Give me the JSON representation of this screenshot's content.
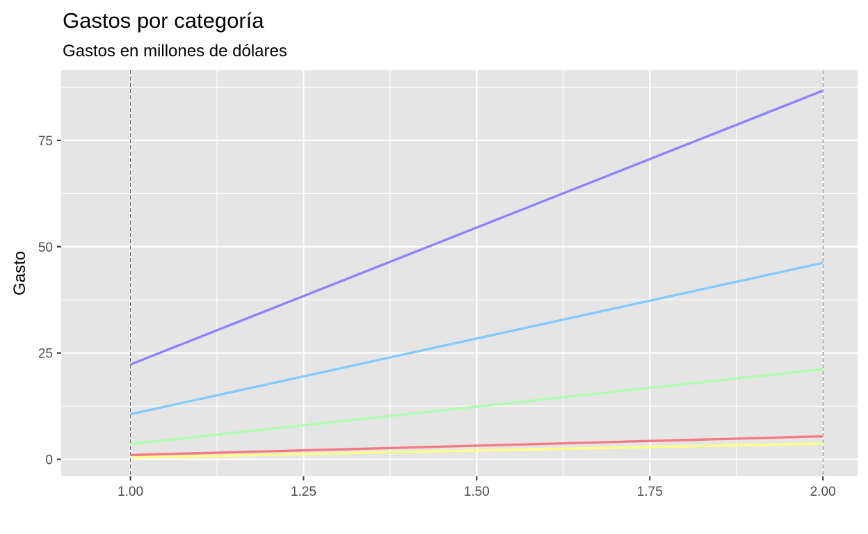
{
  "chart_data": {
    "type": "line",
    "title": "Gastos por categoría",
    "subtitle": "Gastos en millones de dólares",
    "xlabel": "",
    "ylabel": "Gasto",
    "xlim": [
      0.9,
      2.05
    ],
    "ylim": [
      -4,
      91.5
    ],
    "x_ticks": [
      1.0,
      1.25,
      1.5,
      1.75,
      2.0
    ],
    "x_tick_labels": [
      "1.00",
      "1.25",
      "1.50",
      "1.75",
      "2.00"
    ],
    "x_minor_ticks": [
      1.125,
      1.375,
      1.625,
      1.875
    ],
    "y_ticks": [
      0,
      25,
      50,
      75
    ],
    "y_tick_labels": [
      "0",
      "25",
      "50",
      "75"
    ],
    "y_minor_ticks": [
      12.5,
      37.5,
      62.5,
      87.5
    ],
    "grid": true,
    "legend": "none",
    "reference_lines_x": [
      1.0,
      2.0
    ],
    "colors": {
      "panel_background": "#e5e5e5",
      "grid": "#ffffff",
      "reference_line": "#555555"
    },
    "series": [
      {
        "x": [
          1,
          2
        ],
        "values": [
          22.3,
          86.7
        ],
        "color": "#8b85ff"
      },
      {
        "x": [
          1,
          2
        ],
        "values": [
          10.6,
          46.2
        ],
        "color": "#85cbff"
      },
      {
        "x": [
          1,
          2
        ],
        "values": [
          3.6,
          21.2
        ],
        "color": "#adffad"
      },
      {
        "x": [
          1,
          2
        ],
        "values": [
          0.4,
          3.7
        ],
        "color": "#ffff85"
      },
      {
        "x": [
          1,
          2
        ],
        "values": [
          1.0,
          5.4
        ],
        "color": "#f57a85"
      }
    ]
  }
}
